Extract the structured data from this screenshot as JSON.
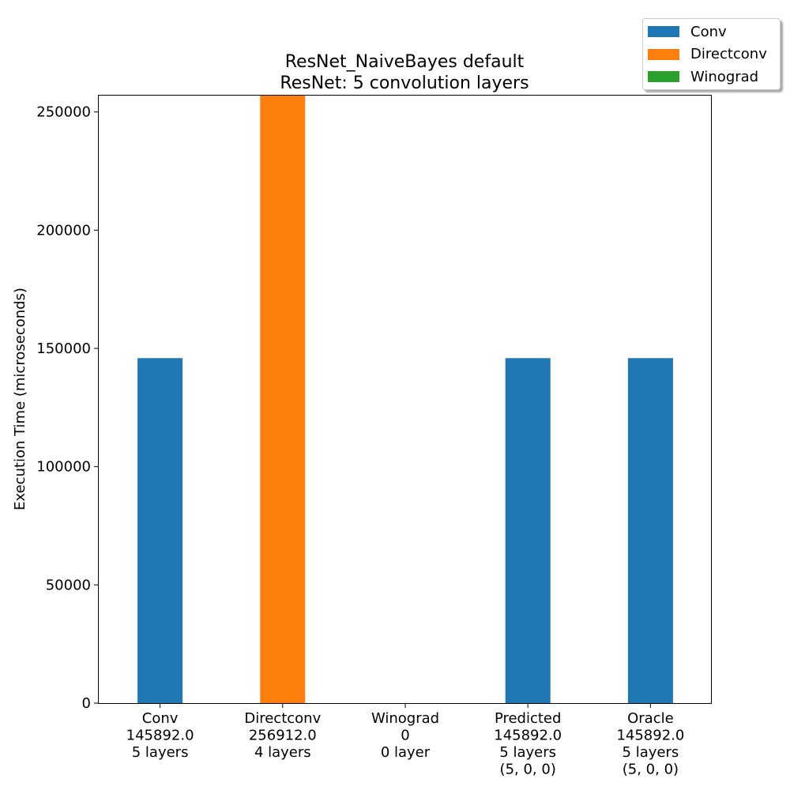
{
  "chart_data": {
    "type": "bar",
    "title": "ResNet_NaiveBayes default",
    "subtitle": "ResNet: 5 convolution layers",
    "ylabel": "Execution Time (microseconds)",
    "xlabel": "",
    "ylim": [
      0,
      256912
    ],
    "yticks": [
      0,
      50000,
      100000,
      150000,
      200000,
      250000
    ],
    "categories": [
      [
        "Conv",
        "145892.0",
        "5 layers"
      ],
      [
        "Directconv",
        "256912.0",
        "4 layers"
      ],
      [
        "Winograd",
        "0",
        "0 layer"
      ],
      [
        "Predicted",
        "145892.0",
        "5 layers",
        "(5, 0, 0)"
      ],
      [
        "Oracle",
        "145892.0",
        "5 layers",
        "(5, 0, 0)"
      ]
    ],
    "values": [
      145892.0,
      256912.0,
      0,
      145892.0,
      145892.0
    ],
    "bar_series": [
      "Conv",
      "Directconv",
      "Winograd",
      "Conv",
      "Conv"
    ],
    "series": [
      {
        "name": "Conv",
        "color": "#1f77b4"
      },
      {
        "name": "Directconv",
        "color": "#ff7f0e"
      },
      {
        "name": "Winograd",
        "color": "#2ca02c"
      }
    ],
    "legend_position": "top-right",
    "grid": false
  }
}
